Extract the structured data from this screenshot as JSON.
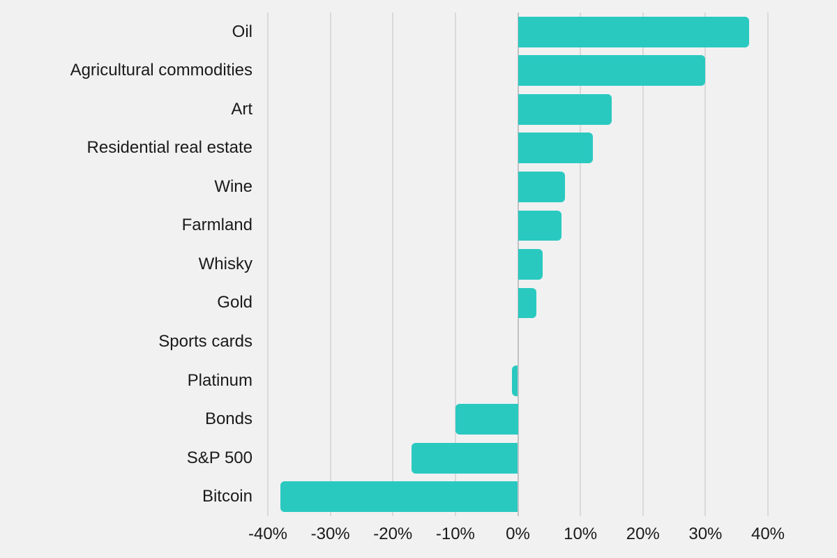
{
  "chart_data": {
    "type": "bar",
    "orientation": "horizontal",
    "title": "",
    "xlabel": "",
    "ylabel": "",
    "categories": [
      "Oil",
      "Agricultural commodities",
      "Art",
      "Residential real estate",
      "Wine",
      "Farmland",
      "Whisky",
      "Gold",
      "Sports cards",
      "Platinum",
      "Bonds",
      "S&P 500",
      "Bitcoin"
    ],
    "values": [
      37,
      30,
      15,
      12,
      7.5,
      7,
      4,
      3,
      0,
      -1,
      -10,
      -17,
      -38
    ],
    "xlim": [
      -40,
      40
    ],
    "x_ticks": [
      -40,
      -30,
      -20,
      -10,
      0,
      10,
      20,
      30,
      40
    ],
    "x_tick_labels": [
      "-40%",
      "-30%",
      "-20%",
      "-10%",
      "0%",
      "10%",
      "20%",
      "30%",
      "40%"
    ],
    "grid": true,
    "legend": false
  },
  "colors": {
    "background": "#f1f1f2",
    "bar": "#2ac9c0",
    "gridline": "#d9d9db",
    "zero_line": "#c2c2c4",
    "text": "#1a1a1a"
  }
}
